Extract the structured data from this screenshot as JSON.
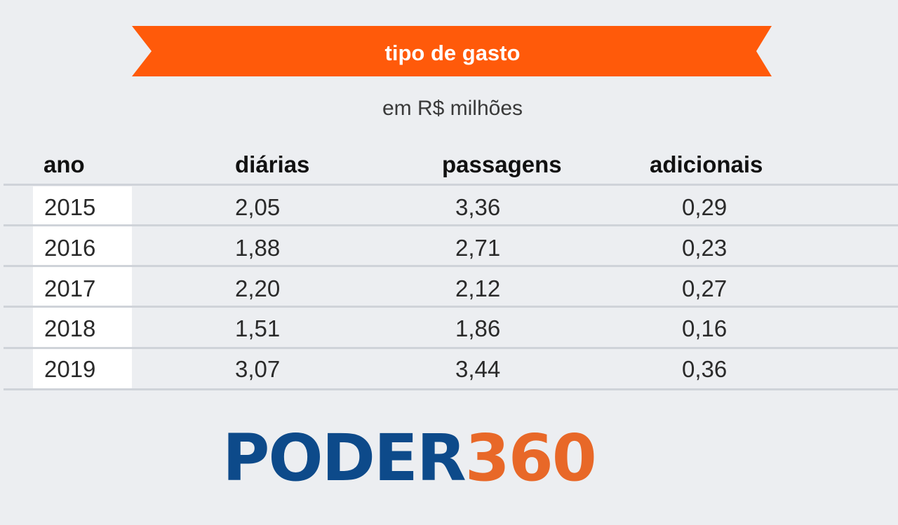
{
  "banner": {
    "title": "tipo de gasto",
    "color": "#ff5a0a"
  },
  "subtitle": "em R$ milhões",
  "table": {
    "headers": [
      "ano",
      "diárias",
      "passagens",
      "adicionais"
    ],
    "rows": [
      [
        "2015",
        "2,05",
        "3,36",
        "0,29"
      ],
      [
        "2016",
        "1,88",
        "2,71",
        "0,23"
      ],
      [
        "2017",
        "2,20",
        "2,12",
        "0,27"
      ],
      [
        "2018",
        "1,51",
        "1,86",
        "0,16"
      ],
      [
        "2019",
        "3,07",
        "3,44",
        "0,36"
      ]
    ]
  },
  "logo": {
    "part1": "PODER",
    "part2": "360",
    "color1": "#0d4a8a",
    "color2": "#e86828"
  },
  "chart_data": {
    "type": "table",
    "title": "tipo de gasto",
    "subtitle": "em R$ milhões",
    "columns": [
      "ano",
      "diárias",
      "passagens",
      "adicionais"
    ],
    "rows": [
      [
        "2015",
        2.05,
        3.36,
        0.29
      ],
      [
        "2016",
        1.88,
        2.71,
        0.23
      ],
      [
        "2017",
        2.2,
        2.12,
        0.27
      ],
      [
        "2018",
        1.51,
        1.86,
        0.16
      ],
      [
        "2019",
        3.07,
        3.44,
        0.36
      ]
    ]
  }
}
